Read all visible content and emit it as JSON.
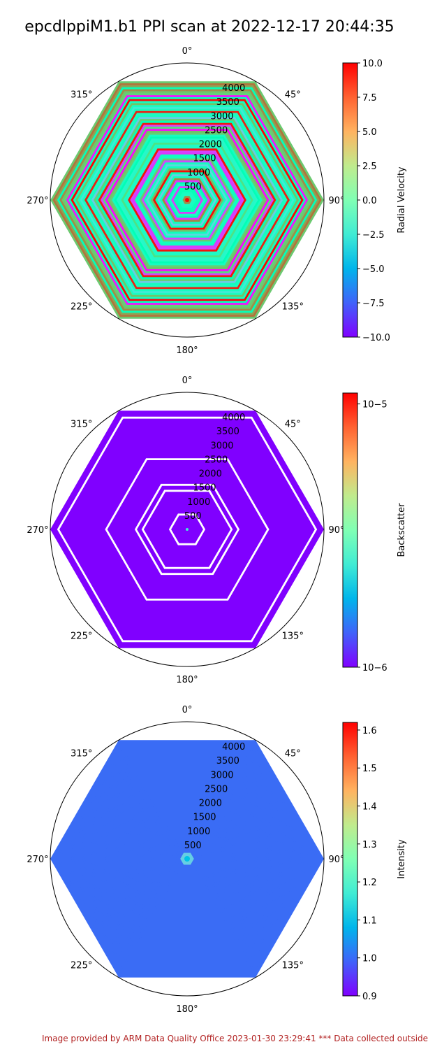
{
  "title": "epcdlppiM1.b1 PPI scan at 2022-12-17 20:44:35",
  "footer": "Image provided by ARM Data Quality Office 2023-01-30 23:29:41     *** Data collected outside",
  "chart_data": [
    {
      "type": "heatmap",
      "projection": "polar",
      "theta_labels": [
        "0°",
        "45°",
        "90°",
        "135°",
        "180°",
        "225°",
        "270°",
        "315°"
      ],
      "r_ticks": [
        500,
        1000,
        1500,
        2000,
        2500,
        3000,
        3500,
        4000
      ],
      "r_tick_labels": [
        "500",
        "1000",
        "1500",
        "2000",
        "2500",
        "3000",
        "3500",
        "4000"
      ],
      "rlim": [
        0,
        4500
      ],
      "colorbar": {
        "label": "Radial Velocity",
        "colormap": "rainbow",
        "scale": "linear",
        "range": [
          -10.0,
          10.0
        ],
        "ticks": [
          -10.0,
          -7.5,
          -5.0,
          -2.5,
          0.0,
          2.5,
          5.0,
          7.5,
          10.0
        ],
        "tick_labels": [
          "−10.0",
          "−7.5",
          "−5.0",
          "−2.5",
          "0.0",
          "2.5",
          "5.0",
          "7.5",
          "10.0"
        ]
      },
      "appearance": "dense multicolored hexagonal rings, dominated by aqua-green with purple, orange and red bands"
    },
    {
      "type": "heatmap",
      "projection": "polar",
      "theta_labels": [
        "0°",
        "45°",
        "90°",
        "135°",
        "180°",
        "225°",
        "270°",
        "315°"
      ],
      "r_ticks": [
        500,
        1000,
        1500,
        2000,
        2500,
        3000,
        3500,
        4000
      ],
      "r_tick_labels": [
        "500",
        "1000",
        "1500",
        "2000",
        "2500",
        "3000",
        "3500",
        "4000"
      ],
      "rlim": [
        0,
        4500
      ],
      "colorbar": {
        "label": "Backscatter",
        "colormap": "rainbow",
        "scale": "log",
        "range": [
          1e-06,
          1.1e-05
        ],
        "ticks": [
          1e-06,
          1e-05
        ],
        "tick_labels": [
          "10−6",
          "10−5"
        ]
      },
      "appearance": "almost entirely purple (minimum) hexagon with white gaps"
    },
    {
      "type": "heatmap",
      "projection": "polar",
      "theta_labels": [
        "0°",
        "45°",
        "90°",
        "135°",
        "180°",
        "225°",
        "270°",
        "315°"
      ],
      "r_ticks": [
        500,
        1000,
        1500,
        2000,
        2500,
        3000,
        3500,
        4000
      ],
      "r_tick_labels": [
        "500",
        "1000",
        "1500",
        "2000",
        "2500",
        "3000",
        "3500",
        "4000"
      ],
      "rlim": [
        0,
        4500
      ],
      "colorbar": {
        "label": "Intensity",
        "colormap": "rainbow",
        "scale": "linear",
        "range": [
          0.9,
          1.62
        ],
        "ticks": [
          0.9,
          1.0,
          1.1,
          1.2,
          1.3,
          1.4,
          1.5,
          1.6
        ],
        "tick_labels": [
          "0.9",
          "1.0",
          "1.1",
          "1.2",
          "1.3",
          "1.4",
          "1.5",
          "1.6"
        ]
      },
      "appearance": "uniform blue hexagon (value near 1.0) with a small cyan spot at the center"
    }
  ]
}
